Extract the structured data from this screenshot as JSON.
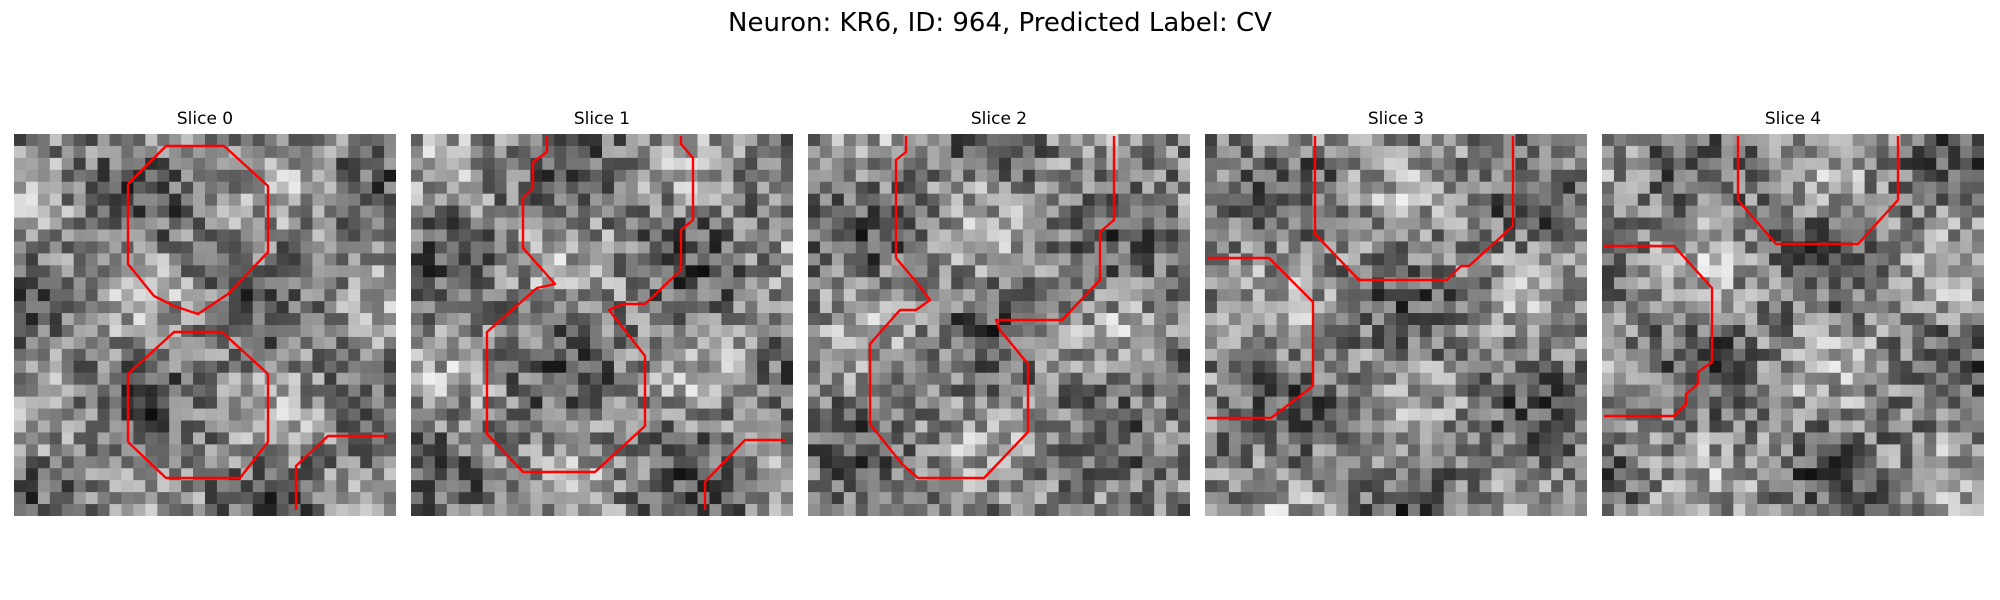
{
  "figure": {
    "title": "Neuron: KR6, ID: 964, Predicted Label: CV",
    "contour_color": "#ff0000",
    "background": "grayscale-noise",
    "panels": [
      {
        "title": "Slice 0"
      },
      {
        "title": "Slice 1"
      },
      {
        "title": "Slice 2"
      },
      {
        "title": "Slice 3"
      },
      {
        "title": "Slice 4"
      }
    ]
  }
}
